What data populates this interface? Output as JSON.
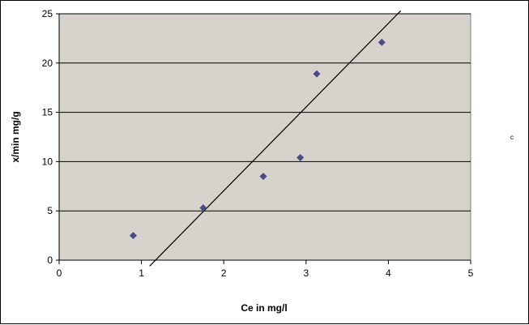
{
  "chart_data": {
    "type": "scatter",
    "title": "",
    "xlabel": "Ce in mg/l",
    "ylabel": "x/min mg/g",
    "xlim": [
      0,
      5
    ],
    "ylim": [
      0,
      25
    ],
    "x_ticks": [
      "0",
      "1",
      "2",
      "3",
      "4",
      "5"
    ],
    "y_ticks": [
      "0",
      "5",
      "10",
      "15",
      "20",
      "25"
    ],
    "grid": "horizontal",
    "legend": "none",
    "plot_background": "#d8d2cc",
    "marker_color": "#4a4a85",
    "marker_shape": "diamond",
    "series": [
      {
        "type": "scatter",
        "x": [
          0.9,
          1.75,
          2.48,
          2.93,
          3.13,
          3.92
        ],
        "y": [
          2.5,
          5.3,
          8.5,
          10.4,
          18.9,
          22.1
        ]
      },
      {
        "type": "trendline",
        "x": [
          1.1,
          4.15
        ],
        "y": [
          -0.6,
          25.3
        ]
      }
    ],
    "annotations": [
      "c"
    ]
  }
}
